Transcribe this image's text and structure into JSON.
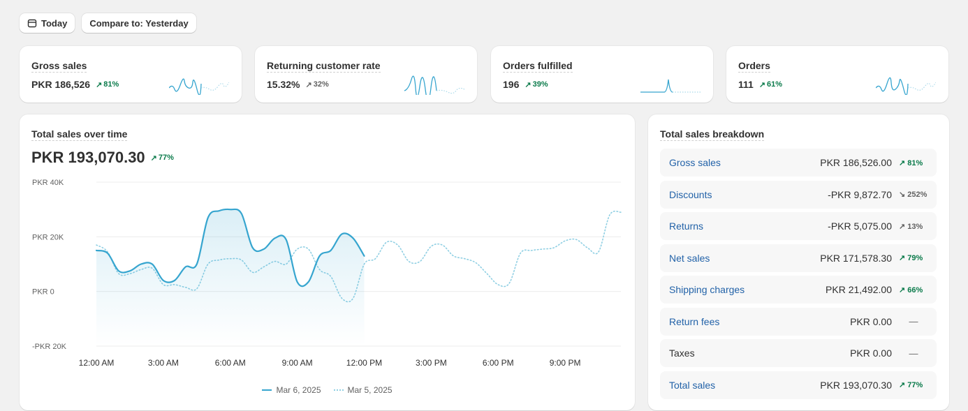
{
  "toolbar": {
    "date_label": "Today",
    "compare_label": "Compare to: Yesterday",
    "date_icon": "calendar-icon"
  },
  "colors": {
    "series_current": "#36a5cf",
    "series_previous": "#8fcfe3",
    "positive": "#0a7a4a",
    "link": "#2262a8"
  },
  "metrics": [
    {
      "title": "Gross sales",
      "value": "PKR 186,526",
      "delta": "81%",
      "trend": "up"
    },
    {
      "title": "Returning customer rate",
      "value": "15.32%",
      "delta": "32%",
      "trend": "neutral"
    },
    {
      "title": "Orders fulfilled",
      "value": "196",
      "delta": "39%",
      "trend": "up"
    },
    {
      "title": "Orders",
      "value": "111",
      "delta": "61%",
      "trend": "up"
    }
  ],
  "sales_chart": {
    "title": "Total sales over time",
    "total": "PKR 193,070.30",
    "delta": "77%"
  },
  "chart_data": {
    "type": "line",
    "y_ticks": [
      "PKR 40K",
      "PKR 20K",
      "PKR 0",
      "-PKR 20K"
    ],
    "y_tick_values": [
      40000,
      20000,
      0,
      -20000
    ],
    "ylim": [
      -20000,
      40000
    ],
    "x_ticks": [
      "12:00 AM",
      "3:00 AM",
      "6:00 AM",
      "9:00 AM",
      "12:00 PM",
      "3:00 PM",
      "6:00 PM",
      "9:00 PM"
    ],
    "grid": true,
    "legend_position": "bottom",
    "series": [
      {
        "name": "Mar 6, 2025",
        "style": "solid",
        "x_hours": [
          0,
          0.5,
          1,
          1.5,
          2,
          2.5,
          3,
          3.5,
          4,
          4.5,
          5,
          5.5,
          6,
          6.5,
          7,
          7.5,
          8,
          8.5,
          9,
          9.5,
          10,
          10.5,
          11,
          11.5,
          12
        ],
        "values": [
          15000,
          14000,
          7500,
          7500,
          10000,
          10000,
          4000,
          4000,
          9000,
          10000,
          27000,
          29500,
          30000,
          28500,
          16000,
          15500,
          19500,
          19000,
          3500,
          3500,
          13000,
          15000,
          21000,
          19500,
          13000
        ]
      },
      {
        "name": "Mar 5, 2025",
        "style": "dotted",
        "x_hours": [
          0,
          0.5,
          1,
          1.5,
          2,
          2.5,
          3,
          3.5,
          4,
          4.5,
          5,
          5.5,
          6,
          6.5,
          7,
          7.5,
          8,
          8.5,
          9,
          9.5,
          10,
          10.5,
          11,
          11.5,
          12,
          12.5,
          13,
          13.5,
          14,
          14.5,
          15,
          15.5,
          16,
          16.5,
          17,
          17.5,
          18,
          18.5,
          19,
          19.5,
          20,
          20.5,
          21,
          21.5,
          22,
          22.5,
          23,
          23.5
        ],
        "values": [
          17000,
          14500,
          6500,
          6500,
          8000,
          8500,
          2500,
          2500,
          1500,
          1000,
          10000,
          11500,
          12000,
          11500,
          7000,
          9000,
          11000,
          10000,
          15500,
          15500,
          8000,
          5500,
          -2500,
          -2500,
          10000,
          12000,
          18000,
          17000,
          11000,
          11000,
          16500,
          17000,
          13000,
          12000,
          10500,
          6500,
          2500,
          3000,
          14000,
          15000,
          15500,
          16000,
          18500,
          19000,
          16000,
          14500,
          28000,
          29000
        ]
      }
    ]
  },
  "breakdown": {
    "title": "Total sales breakdown",
    "rows": [
      {
        "label": "Gross sales",
        "amount": "PKR 186,526.00",
        "delta": "81%",
        "trend": "up",
        "link": true
      },
      {
        "label": "Discounts",
        "amount": "-PKR 9,872.70",
        "delta": "252%",
        "trend": "down",
        "link": true
      },
      {
        "label": "Returns",
        "amount": "-PKR 5,075.00",
        "delta": "13%",
        "trend": "neutral",
        "link": true
      },
      {
        "label": "Net sales",
        "amount": "PKR 171,578.30",
        "delta": "79%",
        "trend": "up",
        "link": true
      },
      {
        "label": "Shipping charges",
        "amount": "PKR 21,492.00",
        "delta": "66%",
        "trend": "up",
        "link": true
      },
      {
        "label": "Return fees",
        "amount": "PKR 0.00",
        "delta": "—",
        "trend": "none",
        "link": true
      },
      {
        "label": "Taxes",
        "amount": "PKR 0.00",
        "delta": "—",
        "trend": "none",
        "link": false
      },
      {
        "label": "Total sales",
        "amount": "PKR 193,070.30",
        "delta": "77%",
        "trend": "up",
        "link": true
      }
    ]
  }
}
